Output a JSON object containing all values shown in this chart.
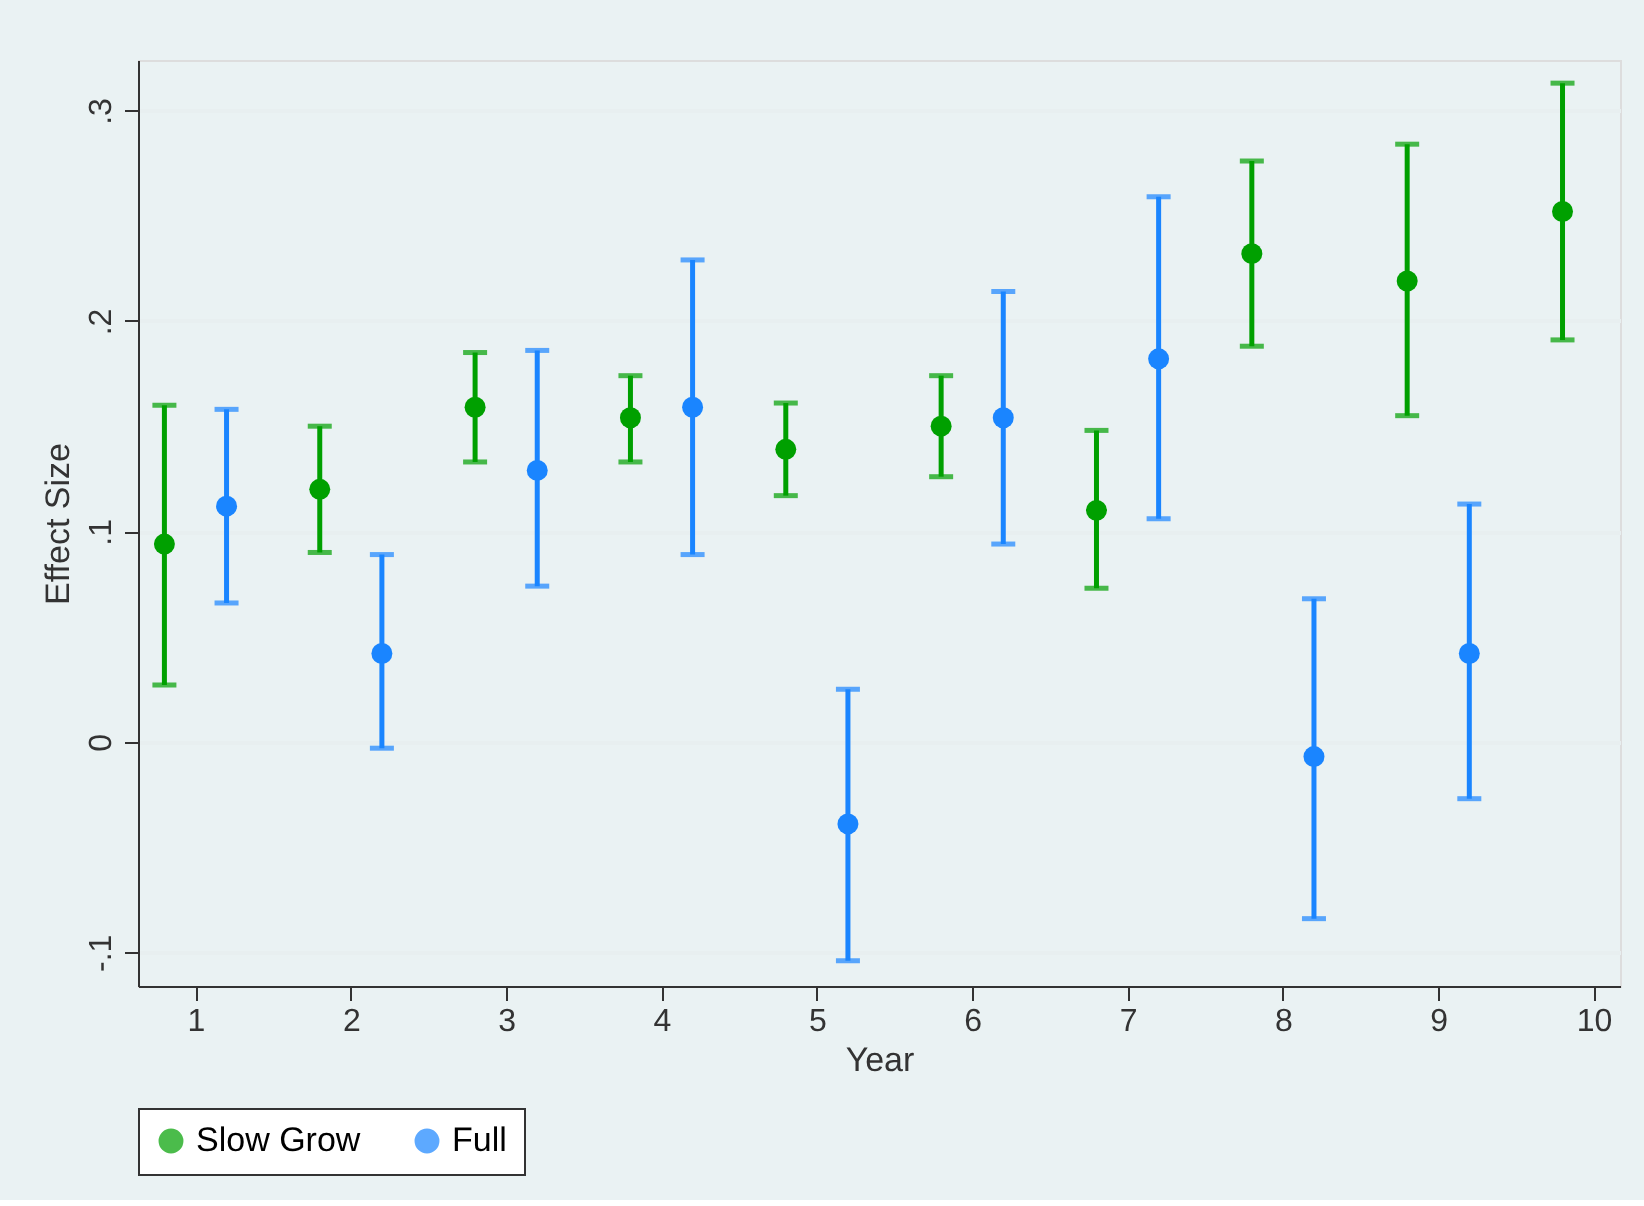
{
  "chart_data": {
    "type": "scatter",
    "xlabel": "Year",
    "ylabel": "Effect Size",
    "xlim": [
      0.63,
      10.17
    ],
    "xticks": [
      1,
      2,
      3,
      4,
      5,
      6,
      7,
      8,
      9,
      10
    ],
    "ylim": [
      -0.116,
      0.324
    ],
    "yticks": [
      {
        "value": -0.1,
        "label": "-.1"
      },
      0,
      {
        "value": 0.1,
        "label": ".1"
      },
      {
        "value": 0.2,
        "label": ".2"
      },
      {
        "value": 0.3,
        "label": ".3"
      }
    ],
    "grid": "y",
    "legend": "bottom",
    "marker": "circle",
    "series": [
      {
        "name": "Slow Grow",
        "color": "#00a000",
        "x": [
          0.8,
          1.8,
          2.8,
          3.8,
          4.8,
          5.8,
          6.8,
          7.8,
          8.8,
          9.8
        ],
        "values": [
          0.094,
          0.12,
          0.159,
          0.154,
          0.139,
          0.15,
          0.11,
          0.232,
          0.219,
          0.252
        ],
        "errors": [
          [
            0.027,
            0.16
          ],
          [
            0.09,
            0.15
          ],
          [
            0.133,
            0.185
          ],
          [
            0.133,
            0.174
          ],
          [
            0.117,
            0.161
          ],
          [
            0.126,
            0.174
          ],
          [
            0.073,
            0.148
          ],
          [
            0.188,
            0.276
          ],
          [
            0.155,
            0.284
          ],
          [
            0.191,
            0.313
          ]
        ]
      },
      {
        "name": "Full",
        "color": "#1a85ff",
        "x": [
          1.2,
          2.2,
          3.2,
          4.2,
          5.2,
          6.2,
          7.2,
          8.2,
          9.2
        ],
        "values": [
          0.112,
          0.042,
          0.129,
          0.159,
          -0.039,
          0.154,
          0.182,
          -0.007,
          0.042
        ],
        "errors": [
          [
            0.066,
            0.158
          ],
          [
            -0.003,
            0.089
          ],
          [
            0.074,
            0.186
          ],
          [
            0.089,
            0.229
          ],
          [
            -0.104,
            0.025
          ],
          [
            0.094,
            0.214
          ],
          [
            0.106,
            0.259
          ],
          [
            -0.084,
            0.068
          ],
          [
            -0.027,
            0.113
          ]
        ]
      }
    ]
  }
}
